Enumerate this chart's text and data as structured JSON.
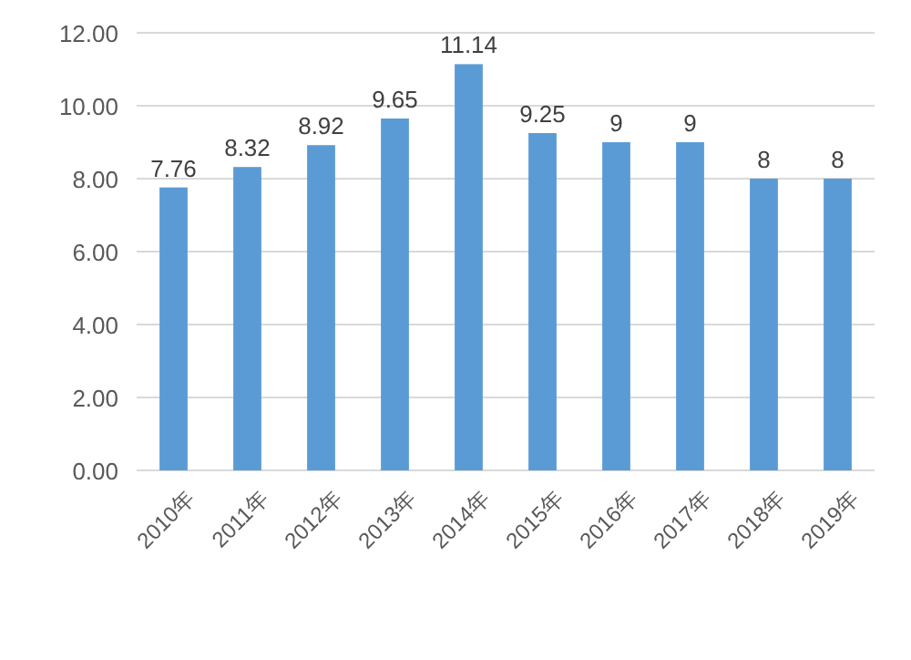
{
  "chart_data": {
    "type": "bar",
    "categories": [
      "2010年",
      "2011年",
      "2012年",
      "2013年",
      "2014年",
      "2015年",
      "2016年",
      "2017年",
      "2018年",
      "2019年"
    ],
    "values": [
      7.76,
      8.32,
      8.92,
      9.65,
      11.14,
      9.25,
      9,
      9,
      8,
      8
    ],
    "color": "#5b9bd5",
    "ylim": [
      0,
      12
    ],
    "yticks": [
      {
        "value": 0,
        "label": "0.00"
      },
      {
        "value": 2,
        "label": "2.00"
      },
      {
        "value": 4,
        "label": "4.00"
      },
      {
        "value": 6,
        "label": "6.00"
      },
      {
        "value": 8,
        "label": "8.00"
      },
      {
        "value": 10,
        "label": "10.00"
      },
      {
        "value": 12,
        "label": "12.00"
      }
    ],
    "grid": "y",
    "data_labels": true
  }
}
